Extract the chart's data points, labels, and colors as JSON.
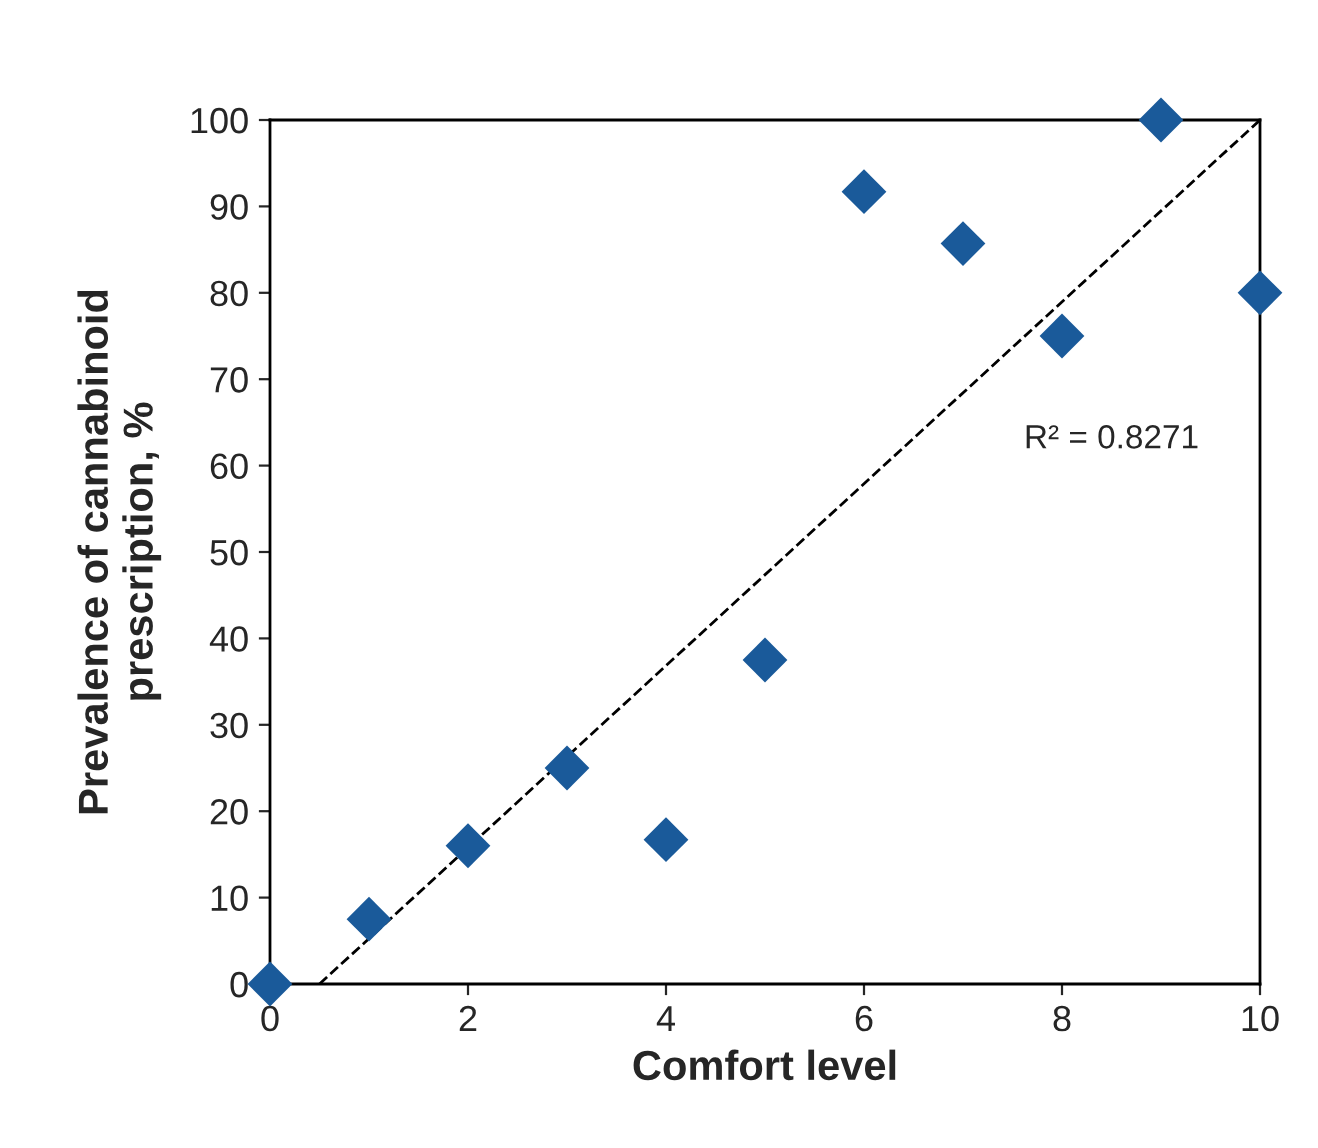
{
  "chart_data": {
    "type": "scatter",
    "xlabel": "Comfort level",
    "ylabel": "Prevalence of cannabinoid\nprescription, %",
    "xlim": [
      0,
      10
    ],
    "ylim": [
      0,
      100
    ],
    "xticks": [
      0,
      2,
      4,
      6,
      8,
      10
    ],
    "yticks": [
      0,
      10,
      20,
      30,
      40,
      50,
      60,
      70,
      80,
      90,
      100
    ],
    "grid": false,
    "series": [
      {
        "color": "#1a5a9a",
        "marker": "diamond",
        "x": [
          0,
          1,
          2,
          3,
          4,
          5,
          6,
          7,
          8,
          9,
          10
        ],
        "values": [
          0,
          7.5,
          16,
          25,
          16.7,
          37.5,
          91.7,
          85.7,
          75,
          100,
          80
        ]
      },
      {
        "type": "line",
        "color": "#000000",
        "line_style": "dashed",
        "marker": "none",
        "x": [
          0.5,
          10
        ],
        "values": [
          0,
          100
        ]
      }
    ],
    "annotations": [
      "R² = 0.8271"
    ]
  }
}
